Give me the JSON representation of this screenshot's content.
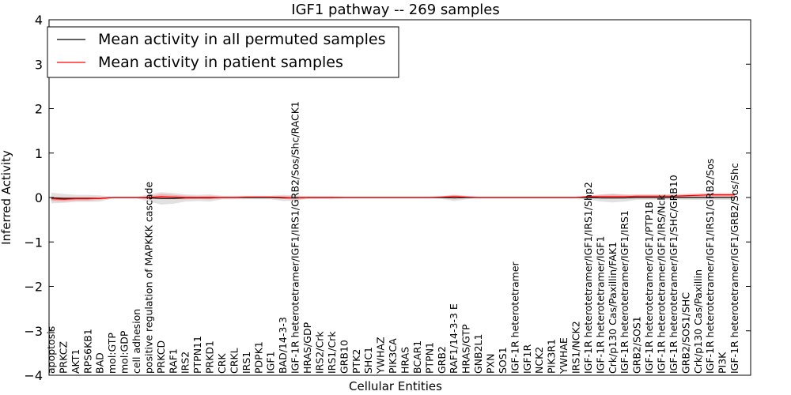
{
  "chart_data": {
    "type": "line",
    "title": "IGF1 pathway -- 269 samples",
    "xlabel": "Cellular Entities",
    "ylabel": "Inferred Activity",
    "ylim": [
      -4,
      4
    ],
    "yticks": [
      -4,
      -3,
      -2,
      -1,
      0,
      1,
      2,
      3,
      4
    ],
    "ytick_labels": [
      "−4",
      "−3",
      "−2",
      "−1",
      "0",
      "1",
      "2",
      "3",
      "4"
    ],
    "legend": {
      "placement": "top-left"
    },
    "categories": [
      "apoptosis",
      "PRKCZ",
      "AKT1",
      "RPS6KB1",
      "BAD",
      "mol:GTP",
      "mol:GDP",
      "cell adhesion",
      "positive regulation of MAPKKK cascade",
      "PRKCD",
      "RAF1",
      "IRS2",
      "PTPN11",
      "PRKD1",
      "CRK",
      "CRKL",
      "IRS1",
      "PDPK1",
      "IGF1",
      "BAD/14-3-3",
      "IGF-1R heterotetramer/IGF1/IRS1/GRB2/Sos/Shc/RACK1",
      "HRAS/GDP",
      "IRS2/Crk",
      "IRS1/Crk",
      "GRB10",
      "PTK2",
      "SHC1",
      "YWHAZ",
      "PIK3CA",
      "HRAS",
      "BCAR1",
      "PTPN1",
      "GRB2",
      "RAF1/14-3-3 E",
      "HRAS/GTP",
      "GNB2L1",
      "PXN",
      "SOS1",
      "IGF-1R heterotetramer",
      "IGF1R",
      "NCK2",
      "PIK3R1",
      "YWHAE",
      "IRS1/NCK2",
      "IGF-1R heterotetramer/IGF1/IRS1/Shp2",
      "IGF-1R heterotetramer/IGF1",
      "Crk/p130 Cas/Paxillin/FAK1",
      "IGF-1R heterotetramer/IGF1/IRS1",
      "GRB2/SOS1",
      "IGF-1R heterotetramer/IGF1/PTP1B",
      "IGF-1R heterotetramer/IGF1/IRS/Nck",
      "IGF-1R heterotetramer/IGF1/SHC/GRB10",
      "GRB2/SOS1/SHC",
      "Crk/p130 Cas/Paxillin",
      "IGF-1R heterotetramer/IGF1/IRS1/GRB2/Sos",
      "PI3K",
      "IGF-1R heterotetramer/IGF1/GRB2/Sos/Shc"
    ],
    "series": [
      {
        "name": "Mean activity in all permuted samples",
        "color": "#000000",
        "values": [
          -0.01,
          -0.02,
          -0.02,
          -0.02,
          -0.02,
          0.0,
          0.0,
          0.0,
          -0.01,
          -0.02,
          -0.02,
          -0.01,
          -0.01,
          -0.01,
          0.0,
          0.0,
          0.0,
          0.0,
          0.0,
          -0.01,
          -0.01,
          0.0,
          0.0,
          0.0,
          0.0,
          0.0,
          0.0,
          0.0,
          0.0,
          0.0,
          0.0,
          0.0,
          0.0,
          -0.01,
          0.0,
          0.0,
          0.0,
          0.0,
          0.0,
          0.0,
          0.0,
          0.0,
          0.0,
          0.0,
          0.0,
          -0.01,
          -0.01,
          -0.01,
          0.0,
          0.0,
          0.0,
          0.0,
          0.0,
          0.0,
          0.0,
          0.0,
          0.0
        ],
        "band": [
          0.12,
          0.1,
          0.08,
          0.08,
          0.07,
          0.02,
          0.02,
          0.02,
          0.08,
          0.14,
          0.12,
          0.08,
          0.07,
          0.08,
          0.04,
          0.04,
          0.04,
          0.04,
          0.04,
          0.07,
          0.06,
          0.03,
          0.03,
          0.03,
          0.02,
          0.02,
          0.02,
          0.02,
          0.02,
          0.02,
          0.02,
          0.02,
          0.03,
          0.07,
          0.04,
          0.02,
          0.02,
          0.02,
          0.02,
          0.02,
          0.02,
          0.02,
          0.02,
          0.02,
          0.04,
          0.08,
          0.1,
          0.08,
          0.05,
          0.05,
          0.05,
          0.05,
          0.05,
          0.05,
          0.05,
          0.05,
          0.05
        ]
      },
      {
        "name": "Mean activity in patient samples",
        "color": "#ff0000",
        "values": [
          -0.03,
          -0.04,
          -0.03,
          -0.03,
          -0.02,
          0.0,
          0.0,
          0.0,
          0.0,
          0.02,
          0.01,
          0.0,
          0.0,
          0.0,
          0.0,
          0.0,
          0.01,
          0.01,
          0.01,
          0.0,
          -0.01,
          0.0,
          0.0,
          0.0,
          0.0,
          0.0,
          0.0,
          0.0,
          0.0,
          0.0,
          0.0,
          0.0,
          0.01,
          0.02,
          0.01,
          0.0,
          0.0,
          0.0,
          0.0,
          0.0,
          0.0,
          0.0,
          0.0,
          0.0,
          0.02,
          0.02,
          0.02,
          0.02,
          0.03,
          0.03,
          0.03,
          0.03,
          0.04,
          0.05,
          0.06,
          0.06,
          0.06
        ],
        "band": [
          0.05,
          0.05,
          0.04,
          0.04,
          0.03,
          0.01,
          0.01,
          0.01,
          0.03,
          0.06,
          0.05,
          0.04,
          0.03,
          0.04,
          0.02,
          0.02,
          0.02,
          0.02,
          0.02,
          0.03,
          0.04,
          0.02,
          0.02,
          0.02,
          0.01,
          0.01,
          0.01,
          0.01,
          0.01,
          0.01,
          0.01,
          0.01,
          0.02,
          0.04,
          0.02,
          0.01,
          0.01,
          0.01,
          0.01,
          0.01,
          0.01,
          0.01,
          0.01,
          0.01,
          0.02,
          0.04,
          0.05,
          0.04,
          0.04,
          0.04,
          0.04,
          0.04,
          0.04,
          0.04,
          0.04,
          0.04,
          0.04
        ]
      }
    ]
  }
}
